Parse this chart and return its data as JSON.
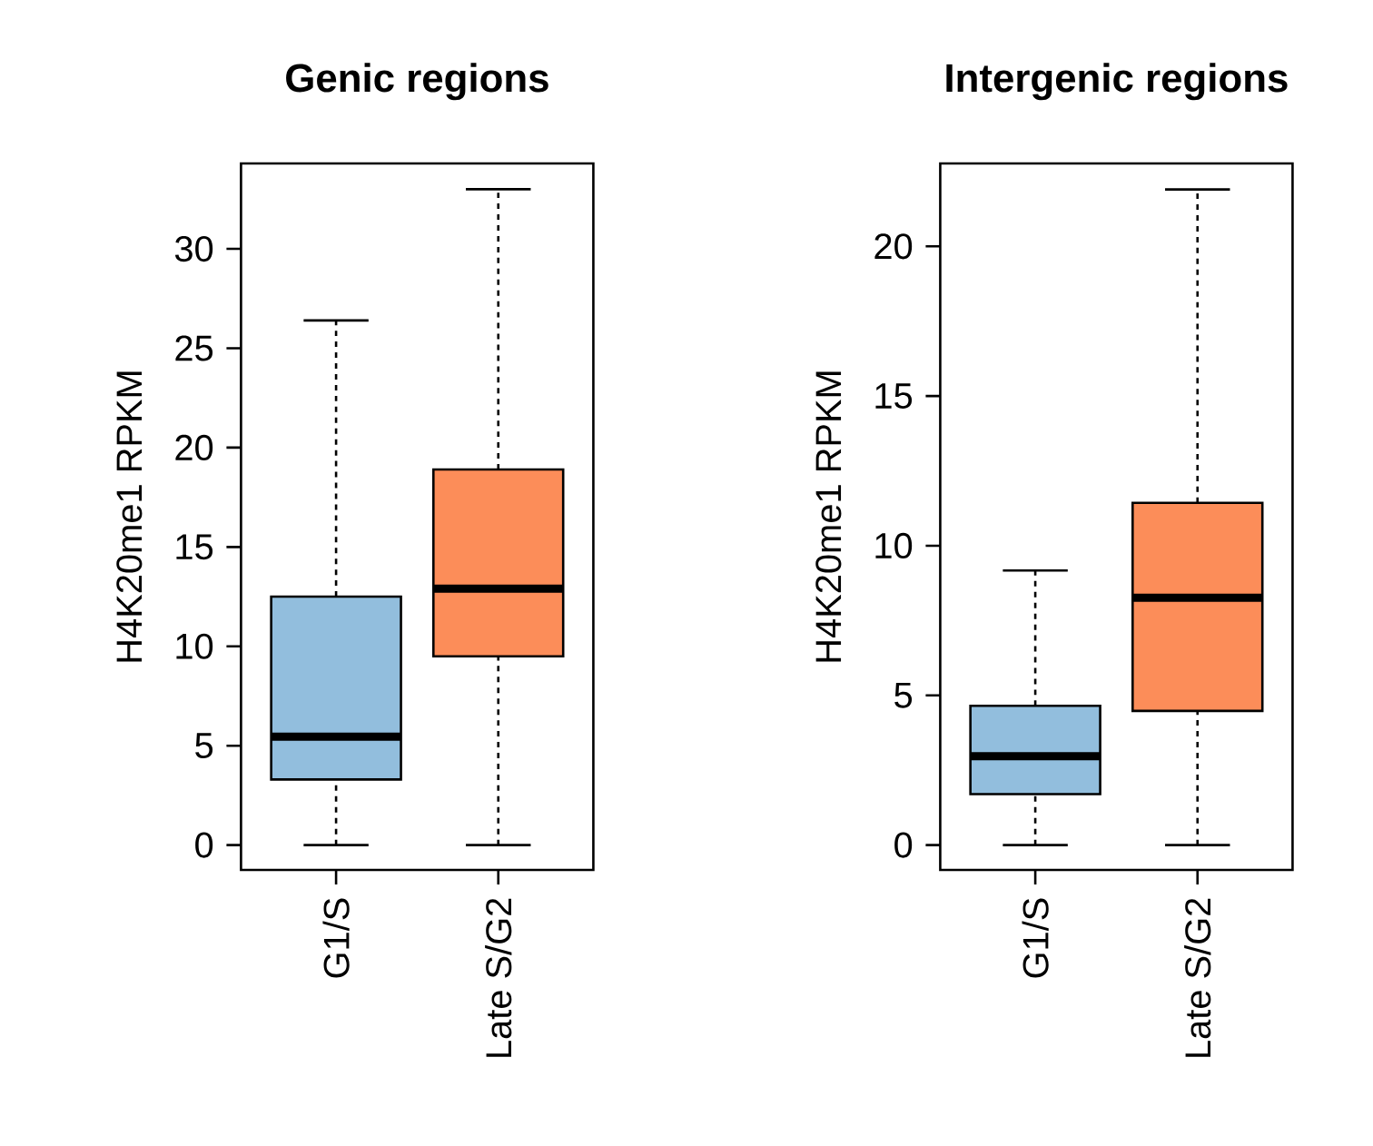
{
  "chart_data": [
    {
      "type": "box",
      "title": "Genic regions",
      "ylabel": "H4K20me1 RPKM",
      "categories": [
        "G1/S",
        "Late S/G2"
      ],
      "colors": [
        "#92bedd",
        "#fc8d59"
      ],
      "boxes": [
        {
          "low": 0,
          "q1": 3.3,
          "median": 5.45,
          "q3": 12.5,
          "high": 26.4
        },
        {
          "low": 0,
          "q1": 9.5,
          "median": 12.9,
          "q3": 18.9,
          "high": 33.0
        }
      ],
      "ylim": [
        -1.25,
        34.3
      ],
      "yticks": [
        0,
        5,
        10,
        15,
        20,
        25,
        30
      ]
    },
    {
      "type": "box",
      "title": "Intergenic regions",
      "ylabel": "H4K20me1 RPKM",
      "categories": [
        "G1/S",
        "Late S/G2"
      ],
      "colors": [
        "#92bedd",
        "#fc8d59"
      ],
      "boxes": [
        {
          "low": 0,
          "q1": 1.7,
          "median": 2.97,
          "q3": 4.65,
          "high": 9.17
        },
        {
          "low": 0,
          "q1": 4.48,
          "median": 8.26,
          "q3": 11.43,
          "high": 21.9
        }
      ],
      "ylim": [
        -0.83,
        22.77
      ],
      "yticks": [
        0,
        5,
        10,
        15,
        20
      ]
    }
  ]
}
